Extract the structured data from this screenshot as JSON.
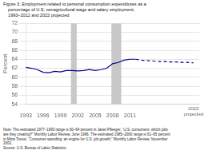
{
  "chart_data": {
    "type": "line",
    "title": "Figure 3. Employment related to personal consumption expenditures as a\n    percentage of U.S. nonagricultural wage and salary employment,\n    1993–2012 and 2022 projected",
    "ylabel": "Percent",
    "note": "Note: The estimated 1977–1993 range is 60–64 percent in Janet Pfleeger, “U.S. consumers: which jobs\nare they creating?” Monthly Labor Review, June 1996. The estimated 1985–2000 range is 61–65 percent\nin Mitra Toossi, “Consumer spending: an engine for U.S. job growth,” Monthly Labor Review, November\n2002.",
    "source": "Source: U.S. Bureau of Labor Statistics.",
    "xlim": [
      1993,
      2023
    ],
    "ylim": [
      54,
      72
    ],
    "xticks": [
      1993,
      1996,
      1999,
      2002,
      2005,
      2008,
      2011
    ],
    "yticks": [
      54,
      56,
      58,
      60,
      62,
      64,
      66,
      68,
      70,
      72
    ],
    "grid": "y",
    "series": [
      {
        "color": "#00008B",
        "line_style": "solid",
        "x": [
          1993,
          1994,
          1995,
          1996,
          1997,
          1998,
          1999,
          2000,
          2001,
          2002,
          2003,
          2004,
          2005,
          2006,
          2007,
          2008,
          2009,
          2010,
          2011,
          2012
        ],
        "values": [
          62.2,
          62.0,
          61.7,
          61.1,
          61.0,
          61.3,
          61.2,
          61.5,
          61.5,
          61.4,
          61.5,
          61.7,
          61.5,
          61.7,
          62.0,
          63.0,
          63.3,
          63.8,
          64.0,
          64.0
        ]
      },
      {
        "color": "#00008B",
        "line_style": "dashed",
        "x": [
          2012,
          2013,
          2014,
          2015,
          2016,
          2017,
          2018,
          2019,
          2020,
          2021,
          2022
        ],
        "values": [
          64.0,
          63.8,
          63.7,
          63.6,
          63.5,
          63.5,
          63.4,
          63.4,
          63.3,
          63.3,
          63.2
        ]
      }
    ],
    "shaded_spans": [
      {
        "start": 2000.8,
        "end": 2001.8,
        "color": "#C8C8C8"
      },
      {
        "start": 2007.8,
        "end": 2009.5,
        "color": "#C8C8C8"
      }
    ],
    "annotations": [
      {
        "x": 2022,
        "text": "2022\nprojected"
      }
    ]
  }
}
